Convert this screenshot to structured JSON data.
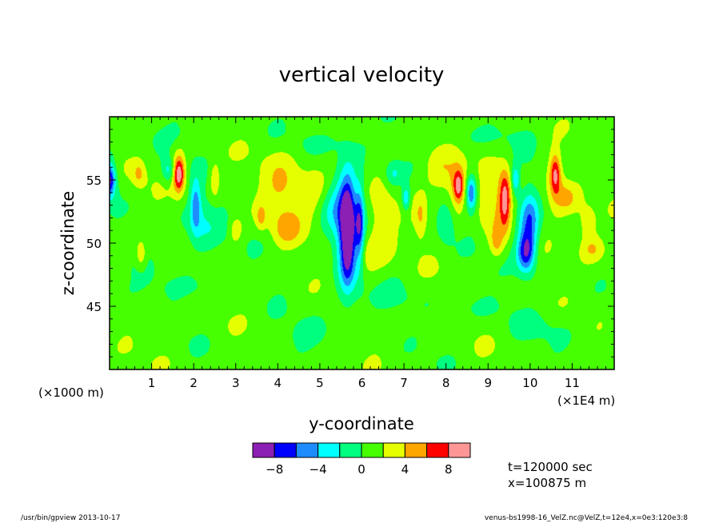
{
  "chart_data": {
    "type": "heatmap",
    "title": "vertical velocity",
    "xlabel": "y-coordinate",
    "ylabel": "z-coordinate",
    "x_unit_label_left": "(×1000 m)",
    "x_unit_label_right": "(×1E4 m)",
    "xlim": [
      0,
      12
    ],
    "ylim": [
      40,
      60
    ],
    "x_ticks": [
      {
        "value": 1,
        "label": "1"
      },
      {
        "value": 2,
        "label": "2"
      },
      {
        "value": 3,
        "label": "3"
      },
      {
        "value": 4,
        "label": "4"
      },
      {
        "value": 5,
        "label": "5"
      },
      {
        "value": 6,
        "label": "6"
      },
      {
        "value": 7,
        "label": "7"
      },
      {
        "value": 8,
        "label": "8"
      },
      {
        "value": 9,
        "label": "9"
      },
      {
        "value": 10,
        "label": "10"
      },
      {
        "value": 11,
        "label": "11"
      }
    ],
    "y_ticks": [
      {
        "value": 45,
        "label": "45"
      },
      {
        "value": 50,
        "label": "50"
      },
      {
        "value": 55,
        "label": "55"
      }
    ],
    "colorbar": {
      "bounds": [
        -10,
        -8,
        -6,
        -4,
        -2,
        0,
        2,
        4,
        6,
        8,
        10
      ],
      "colors": [
        "#8c1fb4",
        "#0000ff",
        "#1e8cff",
        "#00ffff",
        "#00ff7f",
        "#46ff00",
        "#e6ff00",
        "#ffa500",
        "#ff0000",
        "#ff9696"
      ],
      "tick_labels": [
        {
          "value": -8,
          "label": "−8"
        },
        {
          "value": -4,
          "label": "−4"
        },
        {
          "value": 0,
          "label": "0"
        },
        {
          "value": 4,
          "label": "4"
        },
        {
          "value": 8,
          "label": "8"
        }
      ]
    },
    "background_level": 1,
    "features": [
      {
        "y": 0.0,
        "z": 55.0,
        "ry": 0.12,
        "rz": 1.2,
        "v": -7
      },
      {
        "y": 0.0,
        "z": 55.0,
        "ry": 0.22,
        "rz": 1.8,
        "v": -3
      },
      {
        "y": 0.7,
        "z": 55.5,
        "ry": 0.15,
        "rz": 1.0,
        "v": 3
      },
      {
        "y": 0.75,
        "z": 49.0,
        "ry": 0.12,
        "rz": 1.0,
        "v": 3
      },
      {
        "y": 1.4,
        "z": 55.7,
        "ry": 0.15,
        "rz": 1.0,
        "v": -4
      },
      {
        "y": 1.65,
        "z": 55.5,
        "ry": 0.12,
        "rz": 1.3,
        "v": 6
      },
      {
        "y": 1.65,
        "z": 55.5,
        "ry": 0.2,
        "rz": 2.0,
        "v": 3
      },
      {
        "y": 2.05,
        "z": 53.0,
        "ry": 0.12,
        "rz": 2.0,
        "v": -5
      },
      {
        "y": 2.15,
        "z": 51.5,
        "ry": 0.45,
        "rz": 2.5,
        "v": -3
      },
      {
        "y": 2.5,
        "z": 55.0,
        "ry": 0.12,
        "rz": 1.5,
        "v": 3
      },
      {
        "y": 3.0,
        "z": 51.0,
        "ry": 0.15,
        "rz": 1.0,
        "v": 3
      },
      {
        "y": 3.6,
        "z": 52.0,
        "ry": 0.12,
        "rz": 1.0,
        "v": 3
      },
      {
        "y": 4.1,
        "z": 54.5,
        "ry": 0.45,
        "rz": 2.5,
        "v": 3
      },
      {
        "y": 4.2,
        "z": 51.0,
        "ry": 0.35,
        "rz": 1.3,
        "v": 3
      },
      {
        "y": 4.9,
        "z": 54.0,
        "ry": 0.5,
        "rz": 2.0,
        "v": 3
      },
      {
        "y": 5.3,
        "z": 53.0,
        "ry": 0.35,
        "rz": 2.5,
        "v": -3
      },
      {
        "y": 5.65,
        "z": 51.0,
        "ry": 0.14,
        "rz": 3.5,
        "v": -7
      },
      {
        "y": 5.65,
        "z": 51.0,
        "ry": 0.25,
        "rz": 4.5,
        "v": -5
      },
      {
        "y": 5.75,
        "z": 51.0,
        "ry": 0.4,
        "rz": 5.5,
        "v": -3
      },
      {
        "y": 5.95,
        "z": 51.5,
        "ry": 0.1,
        "rz": 2.8,
        "v": -6
      },
      {
        "y": 6.1,
        "z": 49.0,
        "ry": 0.25,
        "rz": 1.8,
        "v": 3
      },
      {
        "y": 6.45,
        "z": 51.0,
        "ry": 0.3,
        "rz": 2.8,
        "v": 3
      },
      {
        "y": 6.75,
        "z": 55.5,
        "ry": 0.2,
        "rz": 1.0,
        "v": -3
      },
      {
        "y": 7.05,
        "z": 53.5,
        "ry": 0.1,
        "rz": 1.0,
        "v": -5
      },
      {
        "y": 7.4,
        "z": 52.0,
        "ry": 0.15,
        "rz": 1.8,
        "v": 3
      },
      {
        "y": 7.9,
        "z": 55.5,
        "ry": 0.4,
        "rz": 1.8,
        "v": 3
      },
      {
        "y": 8.0,
        "z": 51.5,
        "ry": 0.2,
        "rz": 1.5,
        "v": -3
      },
      {
        "y": 8.3,
        "z": 54.5,
        "ry": 0.12,
        "rz": 1.2,
        "v": 6
      },
      {
        "y": 8.3,
        "z": 54.5,
        "ry": 0.25,
        "rz": 2.0,
        "v": 3
      },
      {
        "y": 8.6,
        "z": 54.0,
        "ry": 0.1,
        "rz": 1.2,
        "v": -5
      },
      {
        "y": 8.6,
        "z": 54.0,
        "ry": 0.2,
        "rz": 1.8,
        "v": -3
      },
      {
        "y": 8.95,
        "z": 53.0,
        "ry": 0.25,
        "rz": 2.0,
        "v": 3
      },
      {
        "y": 9.2,
        "z": 50.0,
        "ry": 0.15,
        "rz": 1.2,
        "v": 3
      },
      {
        "y": 9.4,
        "z": 53.5,
        "ry": 0.12,
        "rz": 2.0,
        "v": 6
      },
      {
        "y": 9.4,
        "z": 53.0,
        "ry": 0.3,
        "rz": 3.0,
        "v": 3
      },
      {
        "y": 9.65,
        "z": 55.0,
        "ry": 0.1,
        "rz": 1.2,
        "v": -5
      },
      {
        "y": 9.8,
        "z": 51.5,
        "ry": 0.35,
        "rz": 3.0,
        "v": -3
      },
      {
        "y": 9.9,
        "z": 49.2,
        "ry": 0.2,
        "rz": 1.5,
        "v": -7
      },
      {
        "y": 10.0,
        "z": 51.5,
        "ry": 0.2,
        "rz": 2.5,
        "v": -5
      },
      {
        "y": 10.6,
        "z": 55.5,
        "ry": 0.12,
        "rz": 1.5,
        "v": 6
      },
      {
        "y": 10.6,
        "z": 54.5,
        "ry": 0.25,
        "rz": 2.5,
        "v": 3
      },
      {
        "y": 10.9,
        "z": 53.5,
        "ry": 0.25,
        "rz": 1.3,
        "v": 3
      },
      {
        "y": 11.35,
        "z": 51.5,
        "ry": 0.25,
        "rz": 1.5,
        "v": 3
      },
      {
        "y": 11.5,
        "z": 49.5,
        "ry": 0.3,
        "rz": 1.0,
        "v": 3
      },
      {
        "y": 0.5,
        "z": 46.0,
        "ry": 0.8,
        "rz": 1.2,
        "v": -1
      },
      {
        "y": 2.3,
        "z": 46.5,
        "ry": 0.9,
        "rz": 1.0,
        "v": -1
      },
      {
        "y": 4.5,
        "z": 42.5,
        "ry": 1.0,
        "rz": 1.3,
        "v": -1
      },
      {
        "y": 6.5,
        "z": 45.5,
        "ry": 0.9,
        "rz": 1.2,
        "v": -1
      },
      {
        "y": 8.8,
        "z": 45.0,
        "ry": 0.8,
        "rz": 1.0,
        "v": -1
      },
      {
        "y": 10.5,
        "z": 43.5,
        "ry": 0.9,
        "rz": 1.4,
        "v": -1
      },
      {
        "y": 1.5,
        "z": 58.5,
        "ry": 1.2,
        "rz": 1.0,
        "v": -1
      },
      {
        "y": 5.5,
        "z": 58.0,
        "ry": 1.0,
        "rz": 1.0,
        "v": -1
      },
      {
        "y": 9.0,
        "z": 58.5,
        "ry": 1.2,
        "rz": 1.0,
        "v": -1
      },
      {
        "y": 11.5,
        "z": 57.5,
        "ry": 0.6,
        "rz": 1.2,
        "v": -1
      }
    ]
  },
  "info": {
    "time_label": "t=120000 sec",
    "position_label": "x=100875 m"
  },
  "footer": {
    "left": "/usr/bin/gpview  2013-10-17",
    "right": "venus-bs1998-16_VelZ.nc@VelZ,t=12e4,x=0e3:120e3:8"
  }
}
